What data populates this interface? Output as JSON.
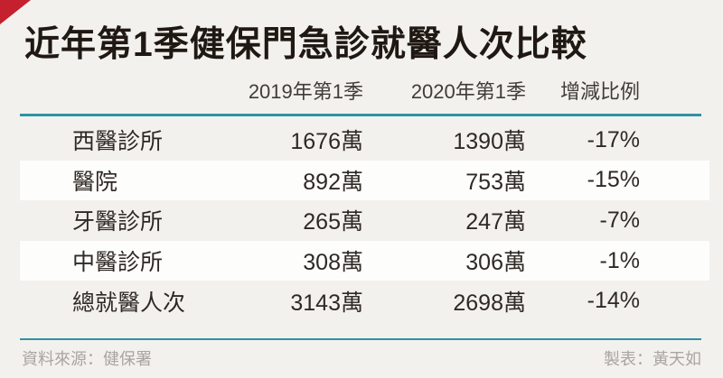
{
  "title": "近年第1季健保門急診就醫人次比較",
  "colors": {
    "accent_teal": "#2e93a3",
    "accent_red": "#c5202d",
    "page_bg": "#f3f1ee",
    "alt_row_bg": "#fdfdfc",
    "title_text": "#1f1813",
    "body_text": "#2f2924",
    "footer_text": "#a9a5a0"
  },
  "table": {
    "columns": [
      "2019年第1季",
      "2020年第1季",
      "增減比例"
    ],
    "rows": [
      {
        "category": "西醫診所",
        "q1_2019": "1676萬",
        "q1_2020": "1390萬",
        "change": "-17%"
      },
      {
        "category": "醫院",
        "q1_2019": "892萬",
        "q1_2020": "753萬",
        "change": "-15%"
      },
      {
        "category": "牙醫診所",
        "q1_2019": "265萬",
        "q1_2020": "247萬",
        "change": "-7%"
      },
      {
        "category": "中醫診所",
        "q1_2019": "308萬",
        "q1_2020": "306萬",
        "change": "-1%"
      },
      {
        "category": "總就醫人次",
        "q1_2019": "3143萬",
        "q1_2020": "2698萬",
        "change": "-14%"
      }
    ]
  },
  "footer": {
    "source": "資料來源：健保署",
    "credit": "製表：黃天如"
  },
  "chart_data": {
    "type": "table",
    "title": "近年第1季健保門急診就醫人次比較",
    "columns": [
      "",
      "2019年第1季",
      "2020年第1季",
      "增減比例"
    ],
    "rows": [
      {
        "category": "西醫診所",
        "y2019_wan": 1676,
        "y2020_wan": 1390,
        "change_pct": -17
      },
      {
        "category": "醫院",
        "y2019_wan": 892,
        "y2020_wan": 753,
        "change_pct": -15
      },
      {
        "category": "牙醫診所",
        "y2019_wan": 265,
        "y2020_wan": 247,
        "change_pct": -7
      },
      {
        "category": "中醫診所",
        "y2019_wan": 308,
        "y2020_wan": 306,
        "change_pct": -1
      },
      {
        "category": "總就醫人次",
        "y2019_wan": 3143,
        "y2020_wan": 2698,
        "change_pct": -14
      }
    ]
  }
}
